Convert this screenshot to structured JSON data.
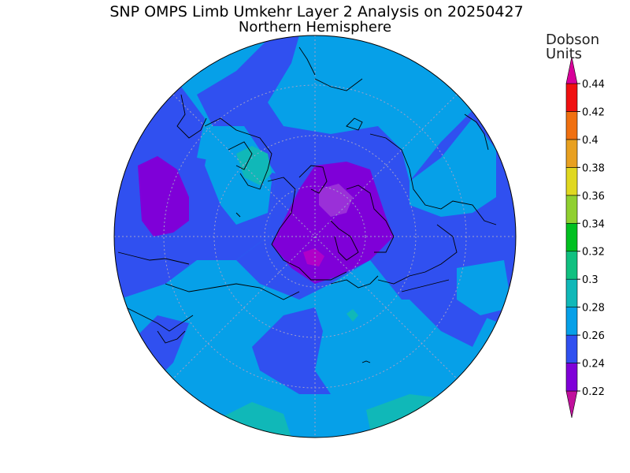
{
  "title": "SNP OMPS Limb Umkehr Layer 2 Analysis on 20250427",
  "subtitle": "Northern Hemisphere",
  "units_line1": "Dobson",
  "units_line2": "Units",
  "colorbar": {
    "ticks": [
      "0.44",
      "0.42",
      "0.4",
      "0.38",
      "0.36",
      "0.34",
      "0.32",
      "0.3",
      "0.28",
      "0.26",
      "0.24",
      "0.22"
    ],
    "bands": [
      {
        "from": 0.2,
        "to": 0.22,
        "color": "#c0109c"
      },
      {
        "from": 0.22,
        "to": 0.24,
        "color": "#7f00d8"
      },
      {
        "from": 0.24,
        "to": 0.26,
        "color": "#3050f0"
      },
      {
        "from": 0.26,
        "to": 0.28,
        "color": "#06a0e8"
      },
      {
        "from": 0.28,
        "to": 0.3,
        "color": "#10b8b8"
      },
      {
        "from": 0.3,
        "to": 0.32,
        "color": "#10c080"
      },
      {
        "from": 0.32,
        "to": 0.34,
        "color": "#00c020"
      },
      {
        "from": 0.34,
        "to": 0.36,
        "color": "#90d030"
      },
      {
        "from": 0.36,
        "to": 0.38,
        "color": "#e0d820"
      },
      {
        "from": 0.38,
        "to": 0.4,
        "color": "#e8a020"
      },
      {
        "from": 0.4,
        "to": 0.42,
        "color": "#f07010"
      },
      {
        "from": 0.42,
        "to": 0.44,
        "color": "#f01010"
      },
      {
        "from": 0.44,
        "to": 0.46,
        "color": "#d8009a"
      }
    ]
  },
  "map_regions": [
    {
      "name": "ozone-region-low",
      "level": 0.24,
      "color": "#7f00d8"
    },
    {
      "name": "ozone-region-very-low",
      "level": 0.22,
      "color": "#b000c8"
    },
    {
      "name": "ozone-region-mid",
      "level": 0.26,
      "color": "#3050f0"
    },
    {
      "name": "ozone-region-high",
      "level": 0.28,
      "color": "#06a0e8"
    },
    {
      "name": "ozone-region-peak",
      "level": 0.3,
      "color": "#10b8b8"
    }
  ]
}
